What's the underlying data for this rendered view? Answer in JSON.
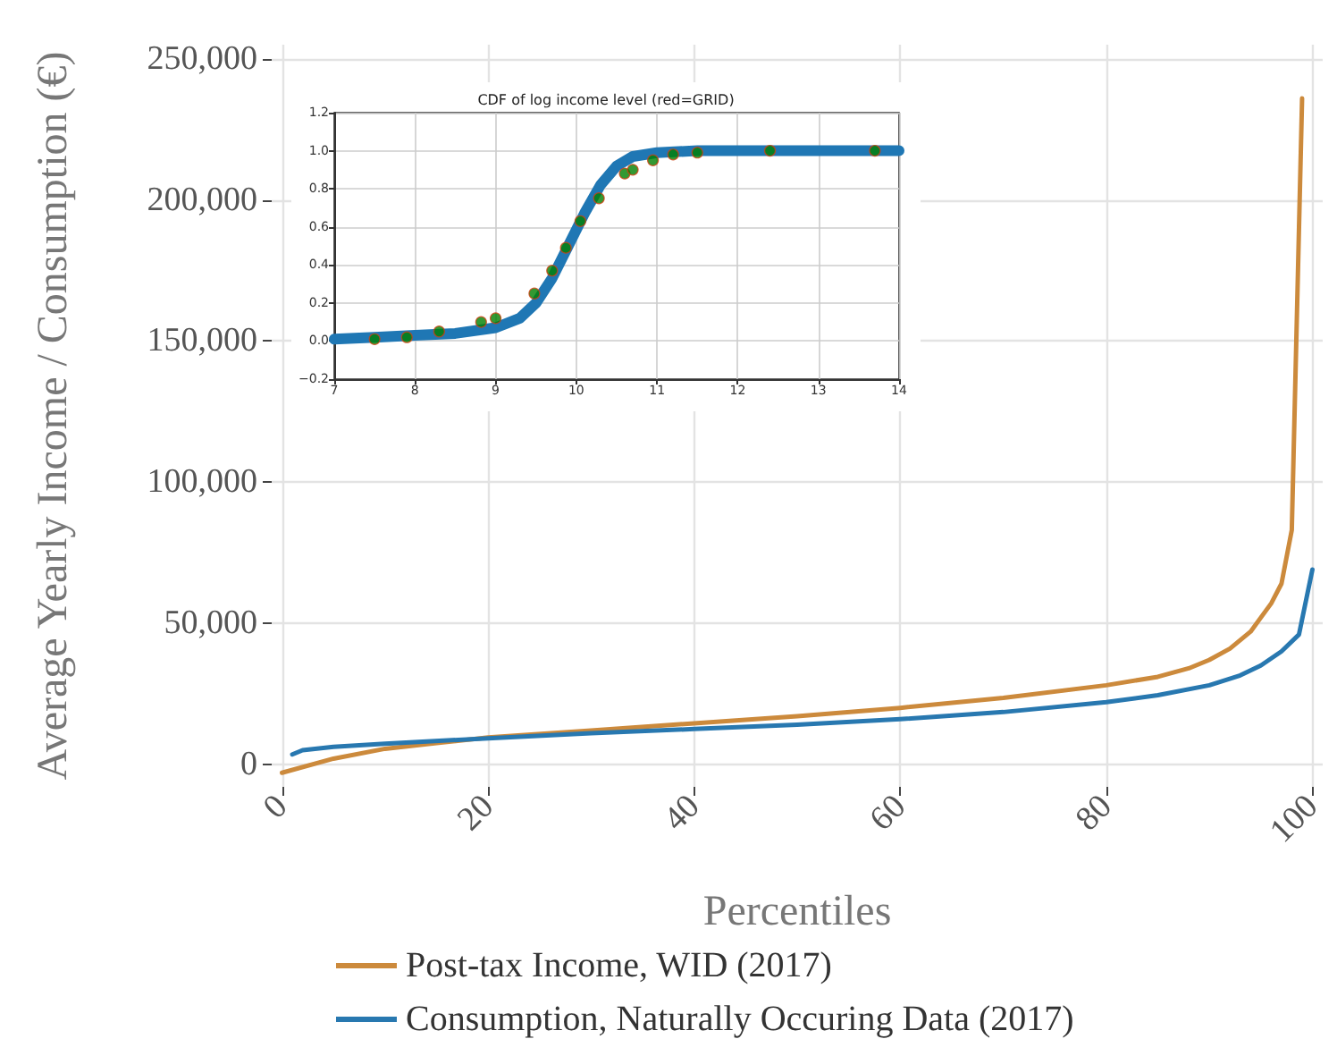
{
  "chart_data": [
    {
      "type": "line",
      "xlabel": "Percentiles",
      "ylabel": "Average Yearly Income / Consumption (€)",
      "xlim": [
        -1,
        101
      ],
      "xticks": [
        0,
        20,
        40,
        60,
        80,
        100
      ],
      "ylim": [
        -8000,
        255000
      ],
      "yticks": [
        {
          "value": 0,
          "label": "0"
        },
        {
          "value": 50000,
          "label": "50,000"
        },
        {
          "value": 100000,
          "label": "100,000"
        },
        {
          "value": 150000,
          "label": "150,000"
        },
        {
          "value": 200000,
          "label": "200,000"
        },
        {
          "value": 250000,
          "label": "250,000"
        }
      ],
      "grid": true,
      "legend": "bottom",
      "marker": "none",
      "line_style": "solid",
      "series": [
        {
          "name": "Post-tax Income, WID (2017)",
          "color": "#cc8a3c",
          "x": [
            0,
            5,
            10,
            15,
            20,
            30,
            40,
            50,
            60,
            70,
            80,
            85,
            88,
            90,
            92,
            94,
            95,
            96,
            97,
            98,
            99
          ],
          "values": [
            -3000,
            2000,
            5500,
            7500,
            9500,
            12000,
            14500,
            17000,
            20000,
            23500,
            28000,
            31000,
            34000,
            37000,
            41000,
            47000,
            52000,
            57000,
            64000,
            83000,
            236000
          ]
        },
        {
          "name": "Consumption, Naturally Occuring Data (2017)",
          "color": "#2878b0",
          "x": [
            1,
            2,
            5,
            10,
            20,
            30,
            40,
            50,
            60,
            70,
            80,
            85,
            90,
            93,
            95,
            97,
            98.7,
            100
          ],
          "values": [
            3500,
            5000,
            6200,
            7300,
            9200,
            11000,
            12500,
            14000,
            16000,
            18500,
            22000,
            24500,
            28000,
            31500,
            35000,
            40000,
            46000,
            69000
          ]
        }
      ]
    },
    {
      "type": "line",
      "title": "CDF of log income level (red=GRID)",
      "xlim": [
        7,
        14
      ],
      "xticks": [
        7,
        8,
        9,
        10,
        11,
        12,
        13,
        14
      ],
      "ylim": [
        -0.2,
        1.2
      ],
      "yticks": [
        {
          "value": -0.2,
          "label": "−0.2"
        },
        {
          "value": 0,
          "label": "0.0"
        },
        0.2,
        0.4,
        0.6,
        0.8,
        {
          "value": 1,
          "label": "1.0"
        },
        1.2
      ],
      "grid": true,
      "legend": false,
      "line_style": "solid",
      "series": [
        {
          "color": "#1f77b4",
          "marker": "none",
          "x": [
            7,
            7.5,
            8,
            8.5,
            9,
            9.3,
            9.5,
            9.7,
            9.9,
            10.1,
            10.3,
            10.5,
            10.7,
            11,
            11.5,
            14
          ],
          "values": [
            0.01,
            0.02,
            0.03,
            0.04,
            0.07,
            0.12,
            0.2,
            0.33,
            0.5,
            0.67,
            0.82,
            0.92,
            0.97,
            0.99,
            1.0,
            1.0
          ]
        },
        {
          "type": "scatter",
          "color": "#008000",
          "marker": "circle",
          "x": [
            7.5,
            7.9,
            8.3,
            8.82,
            9.0,
            9.48,
            9.7,
            9.87,
            10.05,
            10.28,
            10.6,
            10.7,
            10.95,
            11.2,
            11.5,
            12.4,
            13.7
          ],
          "values": [
            0.01,
            0.02,
            0.05,
            0.1,
            0.12,
            0.25,
            0.37,
            0.49,
            0.63,
            0.75,
            0.88,
            0.9,
            0.95,
            0.98,
            0.99,
            1.0,
            1.0
          ]
        }
      ]
    }
  ]
}
